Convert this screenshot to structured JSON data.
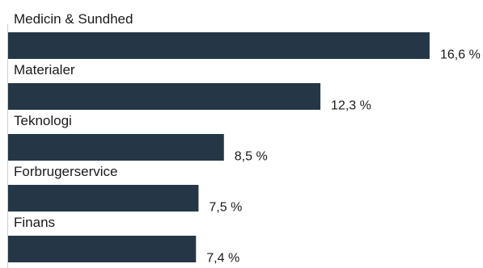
{
  "chart_data": {
    "type": "bar",
    "orientation": "horizontal",
    "categories": [
      "Medicin & Sundhed",
      "Materialer",
      "Teknologi",
      "Forbrugerservice",
      "Finans"
    ],
    "values": [
      16.6,
      12.3,
      8.5,
      7.5,
      7.4
    ],
    "value_labels": [
      "16,6 %",
      "12,3 %",
      "8,5 %",
      "7,5 %",
      "7,4 %"
    ],
    "unit": "%",
    "title": "",
    "xlabel": "",
    "ylabel": "",
    "grid": false,
    "legend": "none",
    "colors": {
      "bar": "#253746",
      "text": "#1a1a1a",
      "axis": "#c8d0d8"
    }
  }
}
